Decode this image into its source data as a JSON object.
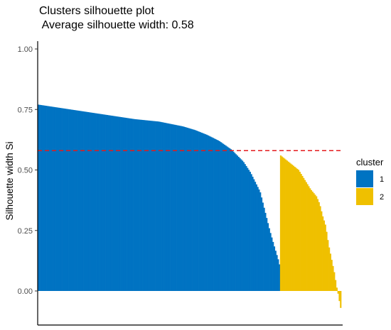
{
  "chart_data": {
    "type": "bar",
    "title": "Clusters silhouette plot",
    "subtitle": "Average silhouette width: 0.58",
    "ylabel": "Silhouette width Si",
    "xlabel": "",
    "ylim": [
      -0.12,
      1.0
    ],
    "yticks": [
      "0.00",
      "0.25",
      "0.50",
      "0.75",
      "1.00"
    ],
    "average_silhouette": 0.58,
    "average_line_color": "#E41A1C",
    "legend": {
      "title": "cluster",
      "items": [
        {
          "label": "1",
          "color": "#0073C2"
        },
        {
          "label": "2",
          "color": "#EFC000"
        }
      ]
    },
    "series": [
      {
        "name": "1",
        "color": "#0073C2",
        "profile": [
          [
            0.0,
            0.77
          ],
          [
            0.1,
            0.755
          ],
          [
            0.2,
            0.74
          ],
          [
            0.3,
            0.725
          ],
          [
            0.4,
            0.71
          ],
          [
            0.5,
            0.7
          ],
          [
            0.6,
            0.68
          ],
          [
            0.65,
            0.665
          ],
          [
            0.7,
            0.645
          ],
          [
            0.75,
            0.62
          ],
          [
            0.8,
            0.585
          ],
          [
            0.85,
            0.535
          ],
          [
            0.88,
            0.49
          ],
          [
            0.9,
            0.45
          ],
          [
            0.92,
            0.41
          ],
          [
            0.94,
            0.33
          ],
          [
            0.96,
            0.25
          ],
          [
            0.98,
            0.18
          ],
          [
            0.995,
            0.13
          ],
          [
            1.0,
            0.11
          ]
        ],
        "n": 190
      },
      {
        "name": "2",
        "color": "#EFC000",
        "profile": [
          [
            0.0,
            0.56
          ],
          [
            0.05,
            0.55
          ],
          [
            0.1,
            0.54
          ],
          [
            0.2,
            0.52
          ],
          [
            0.3,
            0.5
          ],
          [
            0.4,
            0.46
          ],
          [
            0.5,
            0.42
          ],
          [
            0.6,
            0.39
          ],
          [
            0.65,
            0.36
          ],
          [
            0.7,
            0.31
          ],
          [
            0.75,
            0.27
          ],
          [
            0.8,
            0.19
          ],
          [
            0.85,
            0.13
          ],
          [
            0.9,
            0.07
          ],
          [
            0.93,
            0.02
          ],
          [
            0.95,
            0.0
          ],
          [
            0.97,
            -0.03
          ],
          [
            1.0,
            -0.07
          ]
        ],
        "n": 48
      }
    ]
  }
}
